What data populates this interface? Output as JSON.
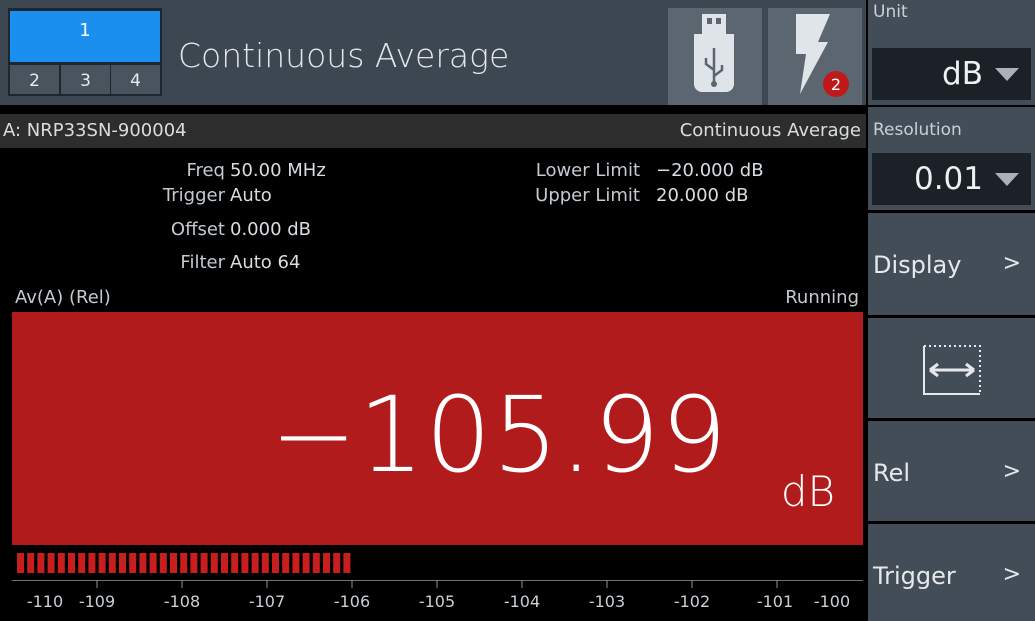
{
  "window_tabs": [
    "1",
    "2",
    "3",
    "4"
  ],
  "title": "Continuous Average",
  "notification_count": "2",
  "sidebar": {
    "unit_label": "Unit",
    "unit_value": "dB",
    "resolution_label": "Resolution",
    "resolution_value": "0.01",
    "buttons": [
      "Display",
      "Rel",
      "Trigger"
    ]
  },
  "sensor": {
    "name": "A: NRP33SN-900004",
    "mode": "Continuous Average"
  },
  "settings": [
    {
      "label": "Freq",
      "value": "50.00 MHz"
    },
    {
      "label": "Trigger",
      "value": "Auto"
    },
    {
      "label": "Offset",
      "value": "0.000 dB"
    },
    {
      "label": "Filter",
      "value": "Auto 64"
    }
  ],
  "limits": [
    {
      "label": "Lower Limit",
      "value": "−20.000 dB"
    },
    {
      "label": "Upper Limit",
      "value": "20.000 dB"
    }
  ],
  "measurement": {
    "function": "Av(A) (Rel)",
    "status": "Running",
    "reading": "−105.99",
    "unit": "dB"
  },
  "scale": [
    "-110",
    "-109",
    "-108",
    "-107",
    "-106",
    "-105",
    "-104",
    "-103",
    "-102",
    "-101",
    "-100"
  ]
}
